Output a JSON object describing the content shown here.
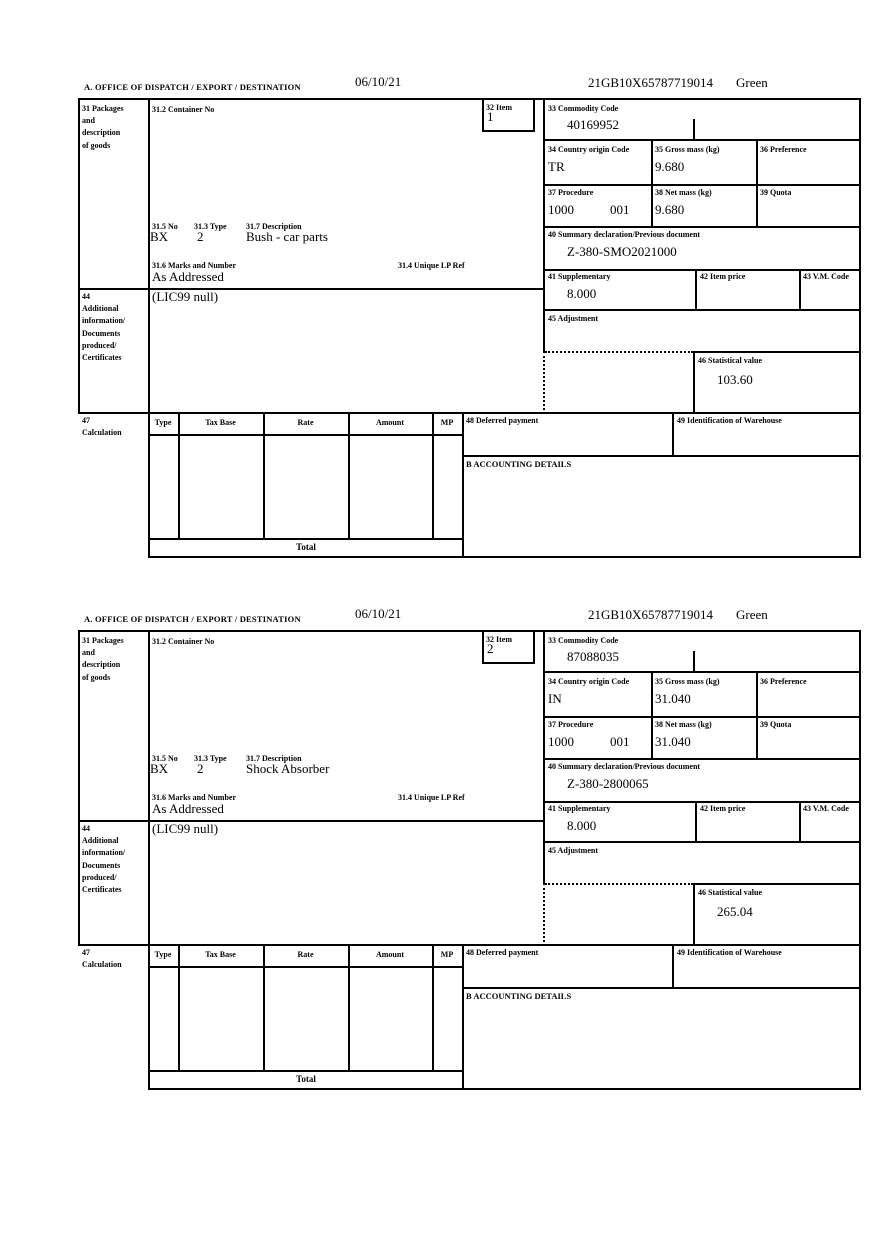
{
  "form": {
    "header_title": "A.  OFFICE OF DISPATCH / EXPORT / DESTINATION",
    "labels": {
      "box31": "31 Packages\nand\ndescription\nof goods",
      "box31_2": "31.2 Container No",
      "box32": "32 Item",
      "box33": "33 Commodity Code",
      "box34": "34 Country origin Code",
      "box35": "35 Gross mass (kg)",
      "box36": "36 Preference",
      "box37": "37 Procedure",
      "box38": "38 Net mass (kg)",
      "box39": "39 Quota",
      "box31_5": "31.5 No",
      "box31_3": "31.3 Type",
      "box31_7": "31.7 Description",
      "box40": "40 Summary declaration/Previous document",
      "box31_6": "31.6 Marks and Number",
      "box31_4": "31.4 Unique LP Ref",
      "box41": "41 Supplementary",
      "box42": "42 Item price",
      "box43": "43 V.M. Code",
      "box44": "44\nAdditional\ninformation/\nDocuments\nproduced/\nCertificates",
      "box45": "45 Adjustment",
      "box46": "46 Statistical value",
      "box47": "47\nCalculation",
      "box48": "48 Deferred payment",
      "box49": "49 Identification of Warehouse",
      "accounting": "B ACCOUNTING DETAILS",
      "total": "Total",
      "calc_headers": {
        "type": "Type",
        "tax_base": "Tax Base",
        "rate": "Rate",
        "amount": "Amount",
        "mp": "MP"
      }
    }
  },
  "sections": [
    {
      "date": "06/10/21",
      "reference": "21GB10X65787719014",
      "status": "Green",
      "item": "1",
      "commodity_code": "40169952",
      "country_origin": "TR",
      "gross_mass": "9.680",
      "procedure_1": "1000",
      "procedure_2": "001",
      "net_mass": "9.680",
      "previous_document": "Z-380-SMO2021000",
      "supplementary": "8.000",
      "packages_no": "BX",
      "packages_type": "2",
      "description": "Bush - car parts",
      "marks": "As Addressed",
      "additional_information": "(LIC99 null)",
      "statistical_value": "103.60"
    },
    {
      "date": "06/10/21",
      "reference": "21GB10X65787719014",
      "status": "Green",
      "item": "2",
      "commodity_code": "87088035",
      "country_origin": "IN",
      "gross_mass": "31.040",
      "procedure_1": "1000",
      "procedure_2": "001",
      "net_mass": "31.040",
      "previous_document": "Z-380-2800065",
      "supplementary": "8.000",
      "packages_no": "BX",
      "packages_type": "2",
      "description": "Shock Absorber",
      "marks": "As Addressed",
      "additional_information": "(LIC99 null)",
      "statistical_value": "265.04"
    }
  ]
}
